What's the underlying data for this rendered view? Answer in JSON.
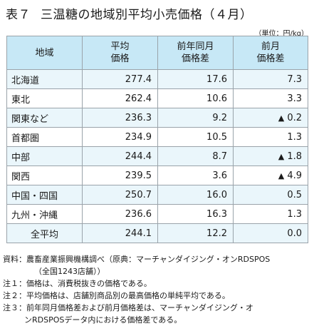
{
  "title": {
    "label": "表７",
    "text": "三温糖の地域別平均小売価格（４月）"
  },
  "unit": "（単位：円/kg）",
  "table": {
    "headers": {
      "region": "地域",
      "avg_line1": "平均",
      "avg_line2": "価格",
      "yoy_line1": "前年同月",
      "yoy_line2": "価格差",
      "mom_line1": "前月",
      "mom_line2": "価格差"
    },
    "rows": [
      {
        "region": "北海道",
        "avg": "277.4",
        "yoy": "17.6",
        "mom_tri": "",
        "mom": "7.3"
      },
      {
        "region": "東北",
        "avg": "262.4",
        "yoy": "10.6",
        "mom_tri": "",
        "mom": "3.3"
      },
      {
        "region": "関東など",
        "avg": "236.3",
        "yoy": "9.2",
        "mom_tri": "▲",
        "mom": "0.2"
      },
      {
        "region": "首都圏",
        "avg": "234.9",
        "yoy": "10.5",
        "mom_tri": "",
        "mom": "1.3"
      },
      {
        "region": "中部",
        "avg": "244.4",
        "yoy": "8.7",
        "mom_tri": "▲",
        "mom": "1.8"
      },
      {
        "region": "関西",
        "avg": "239.5",
        "yoy": "3.6",
        "mom_tri": "▲",
        "mom": "4.9"
      },
      {
        "region": "中国・四国",
        "avg": "250.7",
        "yoy": "16.0",
        "mom_tri": "",
        "mom": "0.5"
      },
      {
        "region": "九州・沖縄",
        "avg": "236.6",
        "yoy": "16.3",
        "mom_tri": "",
        "mom": "1.3"
      },
      {
        "region": "全平均",
        "avg": "244.1",
        "yoy": "12.2",
        "mom_tri": "",
        "mom": "0.0"
      }
    ]
  },
  "notes": {
    "source_1": "資料：農畜産業振興機構調べ（原典：マーチャンダイジング・オンRDSPOS",
    "source_2": "（全国1243店舗））",
    "note1": "注１：価格は、消費税抜きの価格である。",
    "note2": "注２：平均価格は、店舗別商品別の最高価格の単純平均である。",
    "note3_1": "注３：前年同月価格差および前月価格差は、マーチャンダイジング・オ",
    "note3_2": "ンRDSPOSデータ内における価格差である。"
  }
}
